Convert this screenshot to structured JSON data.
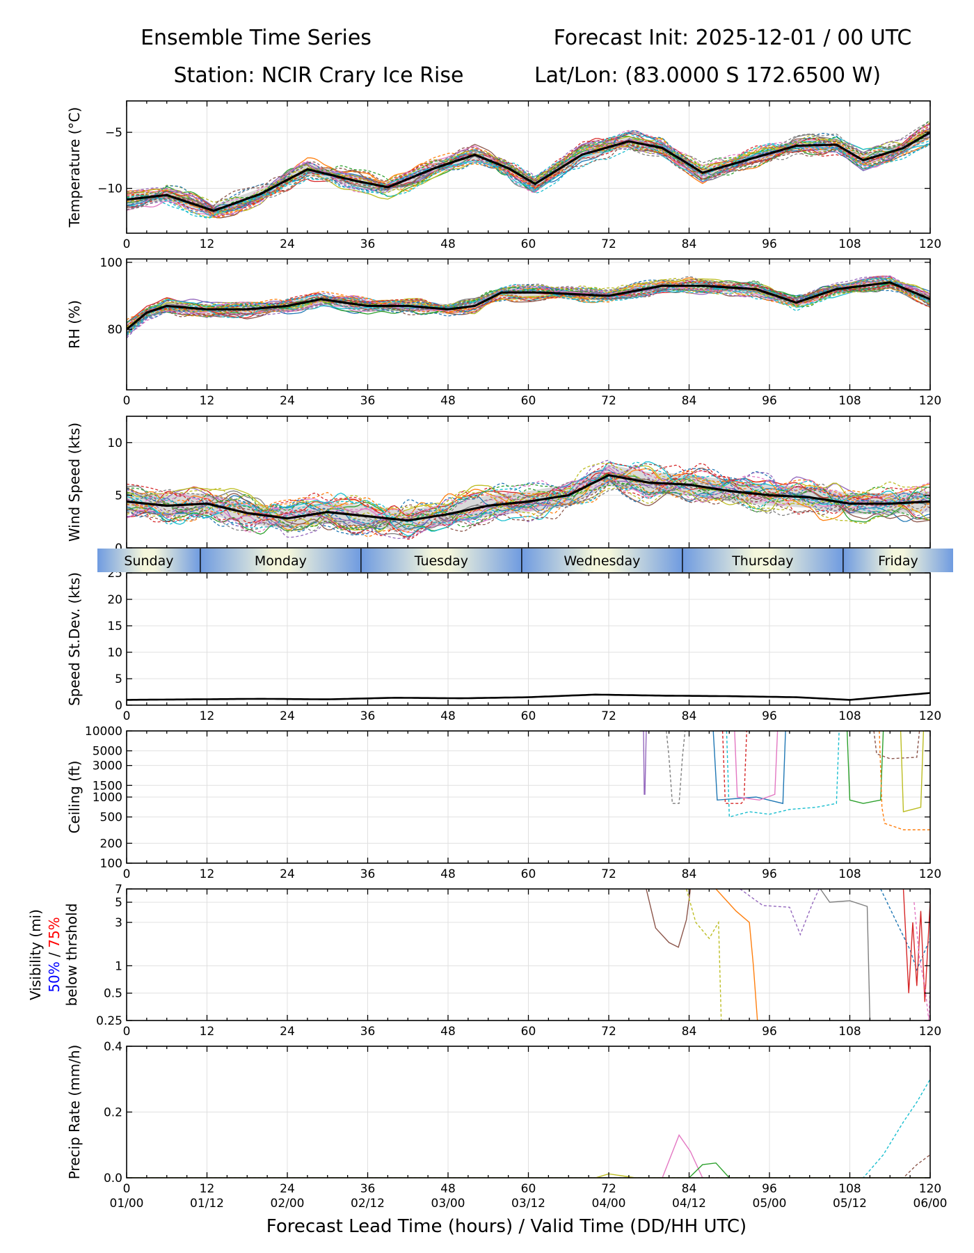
{
  "header": {
    "title_left": "Ensemble Time Series",
    "title_right": "Forecast Init: 2025-12-01 / 00 UTC",
    "station": "Station: NCIR Crary Ice Rise",
    "latlon": "Lat/Lon: (83.0000 S 172.6500 W)"
  },
  "x_axis": {
    "range": [
      0,
      120
    ],
    "ticks": [
      0,
      12,
      24,
      36,
      48,
      60,
      72,
      84,
      96,
      108,
      120
    ],
    "valid_time_labels": [
      "01/00",
      "01/12",
      "02/00",
      "02/12",
      "03/00",
      "03/12",
      "04/00",
      "04/12",
      "05/00",
      "05/12",
      "06/00"
    ],
    "xlabel": "Forecast Lead Time (hours) / Valid Time (DD/HH UTC)"
  },
  "day_band": {
    "days": [
      "Sunday",
      "Monday",
      "Tuesday",
      "Wednesday",
      "Thursday",
      "Friday"
    ],
    "boundaries_hours": [
      11,
      35,
      59,
      83,
      107
    ],
    "colors": {
      "day": "#f4f6dc",
      "night": "#6f9be0"
    }
  },
  "colors": {
    "mean": "#000000",
    "spread": "#cccccc",
    "grid": "#e0e0e0",
    "members": [
      "#1f77b4",
      "#ff7f0e",
      "#2ca02c",
      "#d62728",
      "#9467bd",
      "#8c564b",
      "#e377c2",
      "#7f7f7f",
      "#bcbd22",
      "#17becf"
    ]
  },
  "chart_data": [
    {
      "id": "temperature",
      "type": "line",
      "ylabel": "Temperature (°C)",
      "ylim": [
        -14,
        -2.2
      ],
      "yticks": [
        -10,
        -5
      ],
      "ytick_labels": [
        "−10",
        "−5"
      ],
      "x": [
        0,
        6,
        13,
        20,
        27,
        34,
        39,
        46,
        52,
        57,
        61,
        68,
        75,
        80,
        86,
        93,
        100,
        106,
        110,
        116,
        120
      ],
      "series": [
        {
          "name": "ensemble mean",
          "values": [
            -11.0,
            -10.6,
            -12.0,
            -10.5,
            -8.3,
            -9.3,
            -9.9,
            -8.2,
            -7.0,
            -8.2,
            -9.6,
            -7.0,
            -5.8,
            -6.4,
            -8.6,
            -7.4,
            -6.2,
            -6.1,
            -7.5,
            -6.4,
            -5.0
          ]
        }
      ],
      "spread": 0.5,
      "member_noise": 0.9,
      "member_count": 30
    },
    {
      "id": "rh",
      "type": "line",
      "ylabel": "RH (%)",
      "ylim": [
        62,
        101
      ],
      "yticks": [
        80,
        100
      ],
      "ytick_labels": [
        "80",
        "100"
      ],
      "x": [
        0,
        3,
        6,
        12,
        18,
        24,
        29,
        36,
        42,
        48,
        52,
        56,
        62,
        72,
        80,
        86,
        94,
        100,
        106,
        114,
        120
      ],
      "series": [
        {
          "name": "ensemble mean",
          "values": [
            80,
            85,
            87,
            86,
            86,
            87,
            89,
            87,
            87,
            86,
            87,
            91,
            91,
            90,
            93,
            93,
            92,
            88,
            92,
            94,
            89
          ]
        }
      ],
      "spread": 1.5,
      "member_noise": 2.2,
      "member_count": 30
    },
    {
      "id": "wind",
      "type": "line",
      "ylabel": "Wind Speed (kts)",
      "ylim": [
        0,
        12.5
      ],
      "yticks": [
        0,
        5,
        10
      ],
      "ytick_labels": [
        "0",
        "5",
        "10"
      ],
      "x": [
        0,
        6,
        12,
        18,
        24,
        30,
        36,
        42,
        48,
        54,
        60,
        66,
        72,
        78,
        84,
        90,
        96,
        102,
        108,
        114,
        120
      ],
      "series": [
        {
          "name": "ensemble mean",
          "values": [
            4.4,
            4.0,
            4.2,
            3.3,
            2.8,
            3.4,
            3.0,
            2.6,
            3.2,
            4.0,
            4.4,
            5.0,
            6.9,
            6.2,
            6.0,
            5.4,
            5.0,
            4.8,
            4.2,
            4.2,
            4.4
          ]
        }
      ],
      "spread": 1.0,
      "member_noise": 1.7,
      "member_count": 30
    },
    {
      "id": "speed_stdev",
      "type": "line",
      "ylabel": "Speed St.Dev. (kts)",
      "ylim": [
        0,
        25
      ],
      "yticks": [
        0,
        5,
        10,
        15,
        20,
        25
      ],
      "ytick_labels": [
        "0",
        "5",
        "10",
        "15",
        "20",
        "25"
      ],
      "x": [
        0,
        10,
        20,
        30,
        40,
        50,
        60,
        70,
        80,
        90,
        100,
        108,
        120
      ],
      "series": [
        {
          "name": "speed st.dev.",
          "values": [
            1.0,
            1.1,
            1.2,
            1.1,
            1.4,
            1.3,
            1.5,
            2.0,
            1.8,
            1.7,
            1.5,
            1.0,
            2.3
          ]
        }
      ]
    },
    {
      "id": "ceiling",
      "type": "line",
      "ylabel": "Ceiling (ft)",
      "yscale": "log",
      "ylim": [
        100,
        10000
      ],
      "yticks": [
        100,
        200,
        500,
        1000,
        1500,
        3000,
        5000,
        10000
      ],
      "ytick_labels": [
        "100",
        "200",
        "500",
        "1000",
        "1500",
        "3000",
        "5000",
        "10000"
      ],
      "series": [
        {
          "name": "member 1",
          "x": [
            76.6,
            77.2,
            77.3,
            77.4,
            77.6
          ],
          "values": [
            10000,
            10000,
            1100,
            1100,
            10000
          ]
        },
        {
          "name": "member 2",
          "x": [
            80.6,
            81.0,
            81.5,
            82.5,
            83.0,
            83.4
          ],
          "values": [
            10000,
            4000,
            800,
            800,
            4000,
            10000
          ]
        },
        {
          "name": "member 3",
          "x": [
            87.6,
            88.2,
            94,
            98,
            98.4
          ],
          "values": [
            10000,
            900,
            1000,
            800,
            10000
          ]
        },
        {
          "name": "member 4",
          "x": [
            89.0,
            89.4,
            91.8,
            92.2,
            92.6
          ],
          "values": [
            10000,
            800,
            800,
            900,
            10000
          ]
        },
        {
          "name": "member 5",
          "x": [
            90.8,
            91.2,
            94.5,
            96.8,
            97.2
          ],
          "values": [
            10000,
            1000,
            900,
            1100,
            10000
          ]
        },
        {
          "name": "member 6",
          "x": [
            89.6,
            90.0,
            93,
            96,
            99,
            103,
            106,
            106.4
          ],
          "values": [
            10000,
            500,
            600,
            550,
            650,
            700,
            800,
            10000
          ]
        },
        {
          "name": "member 7",
          "x": [
            107.6,
            108.0,
            110,
            112.6,
            113.0
          ],
          "values": [
            10000,
            900,
            800,
            900,
            10000
          ]
        },
        {
          "name": "member 8",
          "x": [
            111.6,
            112.0,
            114,
            118,
            118.4
          ],
          "values": [
            10000,
            4500,
            3800,
            4000,
            10000
          ]
        },
        {
          "name": "member 9",
          "x": [
            115.6,
            116.0,
            118.6,
            119.0
          ],
          "values": [
            10000,
            600,
            700,
            10000
          ]
        },
        {
          "name": "member 10",
          "x": [
            112.4,
            112.8,
            113.2,
            116,
            120
          ],
          "values": [
            10000,
            700,
            400,
            320,
            320
          ]
        }
      ]
    },
    {
      "id": "visibility",
      "type": "line",
      "ylabel": "Visibility (mi)",
      "ylabel_second": [
        "50%",
        " / ",
        "75%"
      ],
      "ylabel_third": "below thrshold",
      "yscale": "log",
      "ylim": [
        0.25,
        7
      ],
      "yticks": [
        0.25,
        0.5,
        1,
        3,
        5,
        7
      ],
      "ytick_labels": [
        "0.25",
        "0.5",
        "1",
        "3",
        "5",
        "7"
      ],
      "series": [
        {
          "name": "member 1",
          "x": [
            77.6,
            79,
            81,
            82.4,
            83.6,
            84.2
          ],
          "values": [
            7,
            2.6,
            1.8,
            1.6,
            3.2,
            7
          ]
        },
        {
          "name": "member 2",
          "x": [
            83.6,
            85,
            87,
            88.4,
            88.8
          ],
          "values": [
            7,
            3,
            2.0,
            3.0,
            0.25
          ]
        },
        {
          "name": "member 3",
          "x": [
            88,
            91,
            93,
            93.6,
            94.2
          ],
          "values": [
            7,
            4.0,
            3.0,
            1.0,
            0.25
          ]
        },
        {
          "name": "member 4",
          "x": [
            91.6,
            95,
            99,
            100.6,
            102.4,
            103.4
          ],
          "values": [
            7,
            4.6,
            4.4,
            2.2,
            4.8,
            7
          ]
        },
        {
          "name": "member 5",
          "x": [
            103.6,
            105,
            108,
            110.6,
            111
          ],
          "values": [
            7,
            5,
            5.2,
            4.5,
            0.25
          ]
        },
        {
          "name": "member 6",
          "x": [
            112.6,
            115,
            117,
            118,
            120
          ],
          "values": [
            7,
            3,
            1.5,
            0.9,
            2.0
          ]
        },
        {
          "name": "member 7",
          "x": [
            116,
            116.8,
            117.4,
            118.0,
            118.6,
            119.2,
            120
          ],
          "values": [
            7,
            0.5,
            3,
            0.6,
            4,
            0.4,
            5
          ]
        },
        {
          "name": "member 8",
          "x": [
            117.6,
            118.4,
            119.2,
            119.8,
            120
          ],
          "values": [
            5,
            1.2,
            0.6,
            0.25,
            0.6
          ]
        }
      ]
    },
    {
      "id": "precip",
      "type": "line",
      "ylabel": "Precip Rate (mm/h)",
      "ylim": [
        0,
        0.4
      ],
      "yticks": [
        0,
        0.2,
        0.4
      ],
      "ytick_labels": [
        "0.0",
        "0.2",
        "0.4"
      ],
      "series": [
        {
          "name": "member 1",
          "x": [
            0,
            80,
            82.5,
            84.2,
            86,
            120
          ],
          "values": [
            0,
            0.0,
            0.13,
            0.08,
            0.0,
            0.0
          ]
        },
        {
          "name": "member 2",
          "x": [
            0,
            110,
            113,
            116,
            118,
            120
          ],
          "values": [
            0,
            0.0,
            0.07,
            0.17,
            0.23,
            0.3
          ]
        },
        {
          "name": "member 3",
          "x": [
            0,
            84,
            86,
            88,
            90,
            120
          ],
          "values": [
            0,
            0.0,
            0.04,
            0.045,
            0.0,
            0.0
          ]
        },
        {
          "name": "member 4",
          "x": [
            0,
            116,
            118,
            120
          ],
          "values": [
            0,
            0.0,
            0.04,
            0.07
          ]
        },
        {
          "name": "member 5",
          "x": [
            0,
            70,
            72,
            76,
            120
          ],
          "values": [
            0,
            0.0,
            0.012,
            0.0,
            0.0
          ]
        }
      ]
    }
  ]
}
